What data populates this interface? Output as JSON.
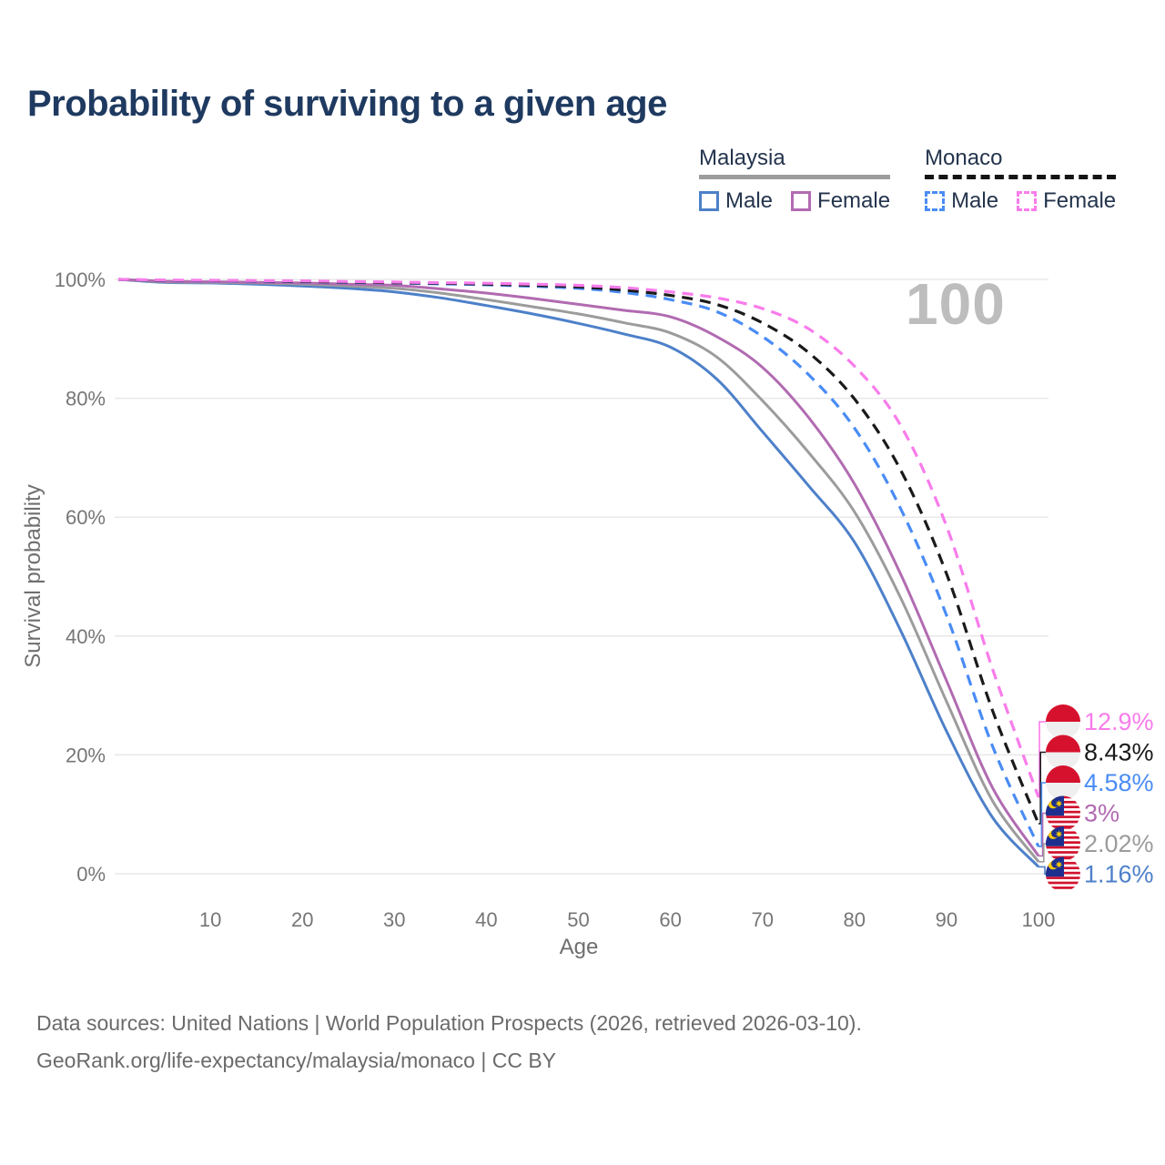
{
  "title": "Probability of surviving to a given age",
  "watermark": "100",
  "legend": {
    "groups": [
      {
        "name": "Malaysia",
        "line_style": "solid",
        "line_color": "#9c9c9c",
        "items": [
          {
            "label": "Male",
            "color": "#4d80c9",
            "dashed": false
          },
          {
            "label": "Female",
            "color": "#b16bb1",
            "dashed": false
          }
        ]
      },
      {
        "name": "Monaco",
        "line_style": "dashed",
        "line_color": "#141414",
        "items": [
          {
            "label": "Male",
            "color": "#4a8cf5",
            "dashed": true
          },
          {
            "label": "Female",
            "color": "#f87ceb",
            "dashed": true
          }
        ]
      }
    ]
  },
  "axes": {
    "y": {
      "label": "Survival probability",
      "ticks": [
        "0%",
        "20%",
        "40%",
        "60%",
        "80%",
        "100%"
      ],
      "tick_values": [
        0,
        20,
        40,
        60,
        80,
        100
      ]
    },
    "x": {
      "label": "Age",
      "ticks": [
        10,
        20,
        30,
        40,
        50,
        60,
        70,
        80,
        90,
        100
      ]
    }
  },
  "chart_data": {
    "type": "line",
    "title": "Probability of surviving to a given age",
    "xlabel": "Age",
    "ylabel": "Survival probability",
    "xlim": [
      0,
      100
    ],
    "ylim": [
      0,
      100
    ],
    "grid": "horizontal",
    "legend_position": "top-right",
    "x": [
      0,
      5,
      10,
      15,
      20,
      25,
      30,
      35,
      40,
      45,
      50,
      55,
      60,
      65,
      70,
      75,
      80,
      85,
      90,
      95,
      100
    ],
    "series": [
      {
        "name": "Malaysia Male",
        "country": "Malaysia",
        "sex": "Male",
        "color": "#4d80c9",
        "dashed": false,
        "flag": "malaysia",
        "end_label": "1.16%",
        "values": [
          100,
          99.5,
          99.4,
          99.2,
          98.9,
          98.5,
          97.9,
          96.9,
          95.6,
          94.2,
          92.6,
          90.8,
          88.6,
          83.3,
          74.4,
          65.3,
          55.8,
          41.0,
          24.0,
          9.5,
          1.16
        ]
      },
      {
        "name": "Malaysia Both sexes",
        "country": "Malaysia",
        "sex": "Both",
        "color": "#9c9c9c",
        "dashed": false,
        "flag": "malaysia",
        "end_label": "2.02%",
        "values": [
          100,
          99.6,
          99.5,
          99.4,
          99.2,
          98.9,
          98.5,
          97.7,
          96.6,
          95.4,
          94.2,
          92.7,
          91.0,
          87.0,
          79.6,
          70.9,
          60.9,
          46.5,
          29.0,
          12.3,
          2.02
        ]
      },
      {
        "name": "Malaysia Female",
        "country": "Malaysia",
        "sex": "Female",
        "color": "#b16bb1",
        "dashed": false,
        "flag": "malaysia",
        "end_label": "3%",
        "values": [
          100,
          99.7,
          99.6,
          99.5,
          99.4,
          99.2,
          99.0,
          98.4,
          97.7,
          96.8,
          95.8,
          94.8,
          93.7,
          90.4,
          85.2,
          76.8,
          65.6,
          50.5,
          32.5,
          14.5,
          3
        ]
      },
      {
        "name": "Monaco Male",
        "country": "Monaco",
        "sex": "Male",
        "color": "#4a8cf5",
        "dashed": true,
        "flag": "monaco",
        "end_label": "4.58%",
        "values": [
          100,
          99.8,
          99.75,
          99.7,
          99.6,
          99.5,
          99.4,
          99.25,
          99.1,
          98.85,
          98.5,
          97.8,
          96.6,
          94.6,
          90.4,
          84.0,
          75.0,
          61.5,
          43.5,
          21.5,
          4.58
        ]
      },
      {
        "name": "Monaco Both sexes",
        "country": "Monaco",
        "sex": "Both",
        "color": "#1a1a1a",
        "dashed": true,
        "flag": "monaco",
        "end_label": "8.43%",
        "values": [
          100,
          99.85,
          99.8,
          99.75,
          99.65,
          99.55,
          99.45,
          99.35,
          99.2,
          99.0,
          98.75,
          98.2,
          97.3,
          95.8,
          92.7,
          87.7,
          79.9,
          68.0,
          50.5,
          27.5,
          8.43
        ]
      },
      {
        "name": "Monaco Female",
        "country": "Monaco",
        "sex": "Female",
        "color": "#f87ceb",
        "dashed": true,
        "flag": "monaco",
        "end_label": "12.9%",
        "values": [
          100,
          99.9,
          99.85,
          99.8,
          99.75,
          99.65,
          99.55,
          99.45,
          99.35,
          99.2,
          99.0,
          98.6,
          97.9,
          96.9,
          95.1,
          91.7,
          85.4,
          75.5,
          58.5,
          34.5,
          12.9
        ]
      }
    ]
  },
  "footer": {
    "line1": "Data sources: United Nations | World Population Prospects (2026, retrieved 2026-03-10).",
    "line2": "GeoRank.org/life-expectancy/malaysia/monaco | CC BY"
  }
}
